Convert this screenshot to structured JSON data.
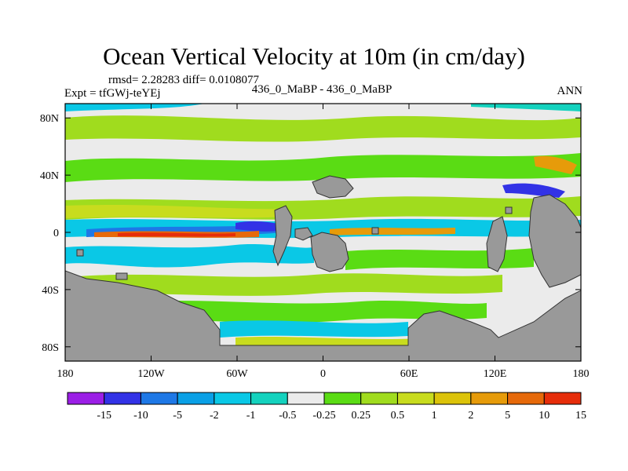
{
  "chart_data": {
    "type": "heatmap",
    "title": "Ocean Vertical Velocity at 10m (in cm/day)",
    "stats": "rmsd= 2.28283 diff= 0.0108077",
    "experiment": "Expt = tfGWj-teYEj",
    "case_label": "436_0_MaBP - 436_0_MaBP",
    "season": "ANN",
    "x_ticks": [
      "180",
      "120W",
      "60W",
      "0",
      "60E",
      "120E",
      "180"
    ],
    "x_tick_values": [
      -180,
      -120,
      -60,
      0,
      60,
      120,
      180
    ],
    "y_ticks": [
      "80N",
      "40N",
      "0",
      "40S",
      "80S"
    ],
    "y_tick_values": [
      80,
      40,
      0,
      -40,
      -80
    ],
    "xlim": [
      -180,
      180
    ],
    "ylim": [
      -90,
      90
    ],
    "colorbar_labels": [
      "-15",
      "-10",
      "-5",
      "-2",
      "-1",
      "-0.5",
      "-0.25",
      "0.25",
      "0.5",
      "1",
      "2",
      "5",
      "10",
      "15"
    ],
    "colorbar_colors": [
      "#9b1ee6",
      "#3232e6",
      "#1e78e6",
      "#0aa0e6",
      "#0ac8e6",
      "#14d2be",
      "#ebebeb",
      "#5adc14",
      "#a0dc1e",
      "#c8dc1e",
      "#dcc30a",
      "#e69b0a",
      "#e6690a",
      "#e62d0a"
    ],
    "land_color": "#999999"
  }
}
